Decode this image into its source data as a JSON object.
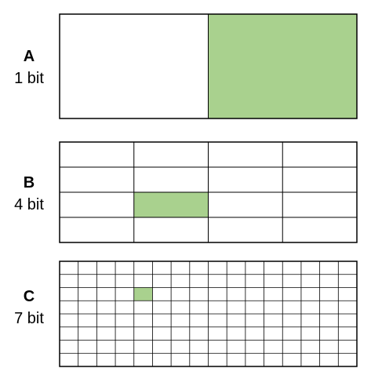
{
  "panels": [
    {
      "letter": "A",
      "bits": "1 bit",
      "cols": 2,
      "rows": 1,
      "highlight": {
        "col": 1,
        "row": 0
      }
    },
    {
      "letter": "B",
      "bits": "4 bit",
      "cols": 4,
      "rows": 4,
      "highlight": {
        "col": 1,
        "row": 2
      }
    },
    {
      "letter": "C",
      "bits": "7 bit",
      "cols": 16,
      "rows": 8,
      "highlight": {
        "col": 4,
        "row": 2
      }
    }
  ],
  "colors": {
    "highlight": "#a9d18e",
    "grid_line": "#000000",
    "background": "#ffffff"
  }
}
